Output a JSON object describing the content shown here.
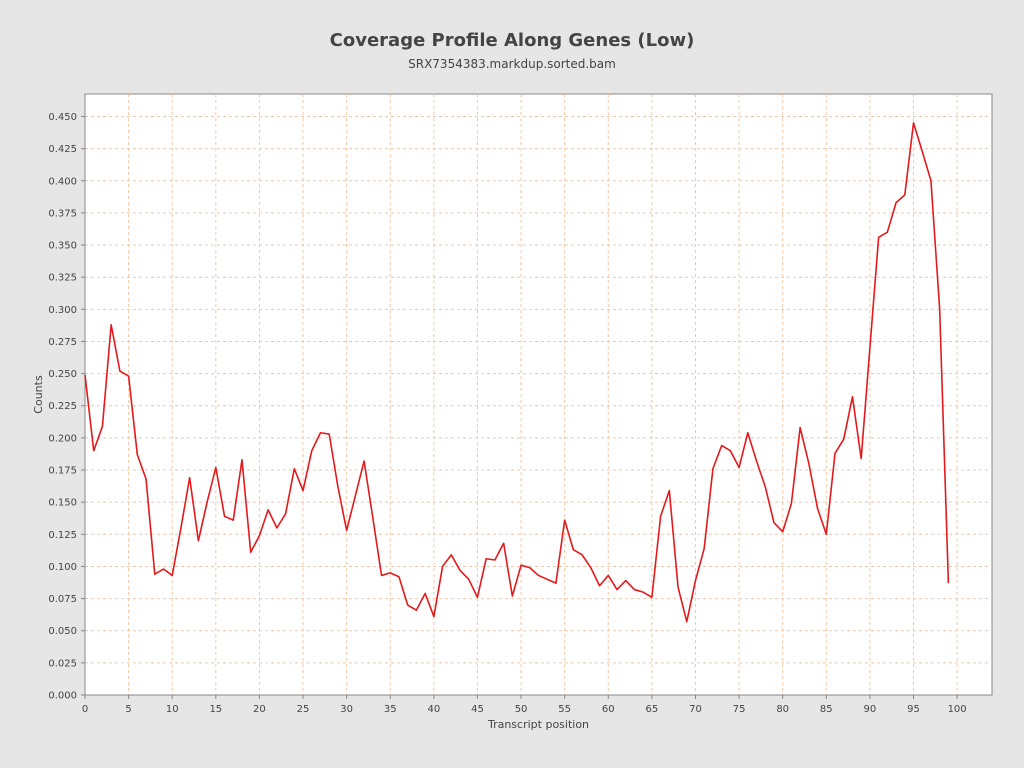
{
  "chart_data": {
    "type": "line",
    "title": "Coverage Profile Along Genes (Low)",
    "subtitle": "SRX7354383.markdup.sorted.bam",
    "xlabel": "Transcript position",
    "ylabel": "Counts",
    "xlim": [
      0,
      104
    ],
    "ylim": [
      0,
      0.4675
    ],
    "x_ticks": [
      "0",
      "5",
      "10",
      "15",
      "20",
      "25",
      "30",
      "35",
      "40",
      "45",
      "50",
      "55",
      "60",
      "65",
      "70",
      "75",
      "80",
      "85",
      "90",
      "95",
      "100"
    ],
    "y_ticks": [
      "0.000",
      "0.025",
      "0.050",
      "0.075",
      "0.100",
      "0.125",
      "0.150",
      "0.175",
      "0.200",
      "0.225",
      "0.250",
      "0.275",
      "0.300",
      "0.325",
      "0.350",
      "0.375",
      "0.400",
      "0.425",
      "0.450"
    ],
    "grid": true,
    "colors": {
      "line": "#e31a1c",
      "grid": "#f0c8a8",
      "plot_bg": "#ffffff",
      "page_bg": "#e6e6e6"
    },
    "series": [
      {
        "x": [
          0,
          1,
          2,
          3,
          4,
          5,
          6,
          7,
          8,
          9,
          10,
          11,
          12,
          13,
          14,
          15,
          16,
          17,
          18,
          19,
          20,
          21,
          22,
          23,
          24,
          25,
          26,
          27,
          28,
          29,
          30,
          31,
          32,
          33,
          34,
          35,
          36,
          37,
          38,
          39,
          40,
          41,
          42,
          43,
          44,
          45,
          46,
          47,
          48,
          49,
          50,
          51,
          52,
          53,
          54,
          55,
          56,
          57,
          58,
          59,
          60,
          61,
          62,
          63,
          64,
          65,
          66,
          67,
          68,
          69,
          70,
          71,
          72,
          73,
          74,
          75,
          76,
          77,
          78,
          79,
          80,
          81,
          82,
          83,
          84,
          85,
          86,
          87,
          88,
          89,
          90,
          91,
          92,
          93,
          94,
          95,
          96,
          97,
          98,
          99
        ],
        "values": [
          0.249,
          0.19,
          0.209,
          0.288,
          0.252,
          0.248,
          0.187,
          0.168,
          0.094,
          0.098,
          0.093,
          0.13,
          0.169,
          0.12,
          0.15,
          0.177,
          0.139,
          0.136,
          0.183,
          0.111,
          0.124,
          0.144,
          0.13,
          0.141,
          0.176,
          0.159,
          0.19,
          0.204,
          0.203,
          0.162,
          0.128,
          0.155,
          0.182,
          0.138,
          0.093,
          0.095,
          0.092,
          0.07,
          0.066,
          0.079,
          0.061,
          0.1,
          0.109,
          0.097,
          0.09,
          0.076,
          0.106,
          0.105,
          0.118,
          0.077,
          0.101,
          0.099,
          0.093,
          0.09,
          0.087,
          0.136,
          0.113,
          0.109,
          0.099,
          0.085,
          0.093,
          0.082,
          0.089,
          0.082,
          0.08,
          0.076,
          0.139,
          0.159,
          0.084,
          0.057,
          0.089,
          0.114,
          0.176,
          0.194,
          0.19,
          0.177,
          0.204,
          0.182,
          0.162,
          0.134,
          0.127,
          0.149,
          0.208,
          0.18,
          0.145,
          0.125,
          0.188,
          0.199,
          0.232,
          0.184,
          0.27,
          0.356,
          0.36,
          0.383,
          0.389,
          0.445,
          0.423,
          0.4,
          0.3,
          0.087
        ]
      }
    ]
  }
}
